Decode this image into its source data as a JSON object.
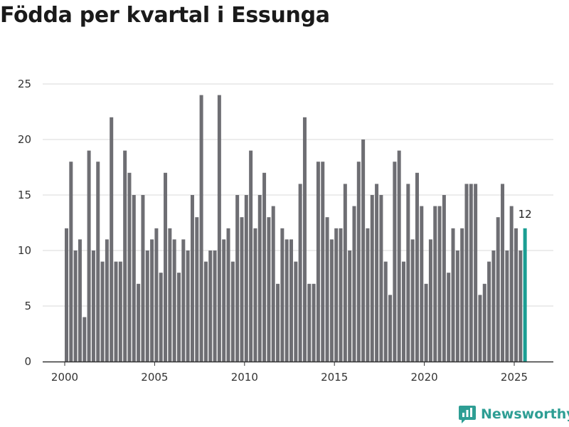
{
  "chart_data": {
    "type": "bar",
    "title": "Födda per kvartal i Essunga",
    "xlabel": "",
    "ylabel": "",
    "ylim": [
      0,
      25
    ],
    "yticks": [
      0,
      5,
      10,
      15,
      20,
      25
    ],
    "xticks": [
      "2000",
      "2005",
      "2010",
      "2015",
      "2020",
      "2025"
    ],
    "start_year": 2000,
    "periods_per_year": 4,
    "highlight_label": "12",
    "colors": {
      "bar": "#6e6e73",
      "highlight": "#1a9e93",
      "grid": "#d9d9d9",
      "axis": "#333333"
    },
    "values": [
      12,
      18,
      10,
      11,
      4,
      19,
      10,
      18,
      9,
      11,
      22,
      9,
      9,
      19,
      17,
      15,
      7,
      15,
      10,
      11,
      12,
      8,
      17,
      12,
      11,
      8,
      11,
      10,
      15,
      13,
      24,
      9,
      10,
      10,
      24,
      11,
      12,
      9,
      15,
      13,
      15,
      19,
      12,
      15,
      17,
      13,
      14,
      7,
      12,
      11,
      11,
      9,
      16,
      22,
      7,
      7,
      18,
      18,
      13,
      11,
      12,
      12,
      16,
      10,
      14,
      18,
      20,
      12,
      15,
      16,
      15,
      9,
      6,
      18,
      19,
      9,
      16,
      11,
      17,
      14,
      7,
      11,
      14,
      14,
      15,
      8,
      12,
      10,
      12,
      16,
      16,
      16,
      6,
      7,
      9,
      10,
      13,
      16,
      10,
      14,
      12,
      10,
      12
    ]
  },
  "brand": {
    "name": "Newsworthy",
    "icon": "newsworthy-logo-icon"
  }
}
